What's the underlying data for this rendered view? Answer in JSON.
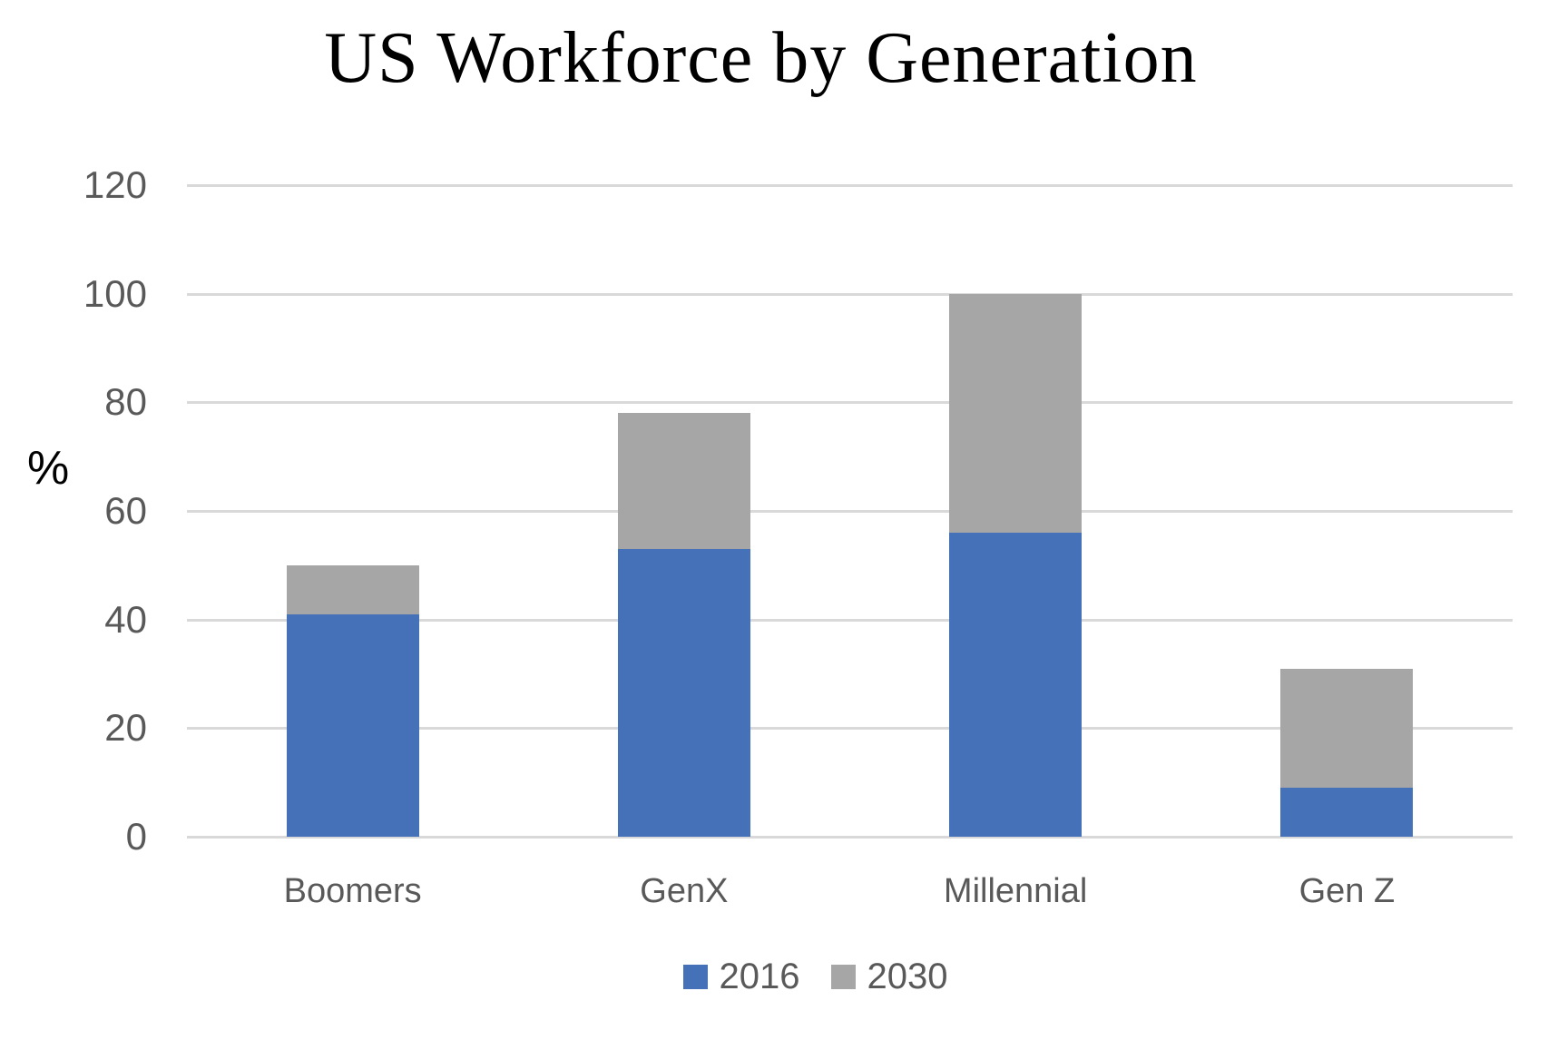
{
  "chart_data": {
    "type": "bar",
    "stacked": true,
    "title": "US Workforce by Generation",
    "ylabel": "%",
    "xlabel": "",
    "categories": [
      "Boomers",
      "GenX",
      "Millennial",
      "Gen Z"
    ],
    "series": [
      {
        "name": "2016",
        "color": "#4471B8",
        "values": [
          41,
          53,
          56,
          9
        ]
      },
      {
        "name": "2030",
        "color": "#A6A6A6",
        "values": [
          9,
          25,
          44,
          22
        ]
      }
    ],
    "stack_totals": [
      50,
      78,
      100,
      31
    ],
    "ylim": [
      0,
      120
    ],
    "yticks": [
      0,
      20,
      40,
      60,
      80,
      100,
      120
    ],
    "grid": true,
    "gridline_color": "#D9D9D9",
    "tick_text_color": "#595959",
    "title_color": "#000000",
    "legend_position": "bottom"
  }
}
